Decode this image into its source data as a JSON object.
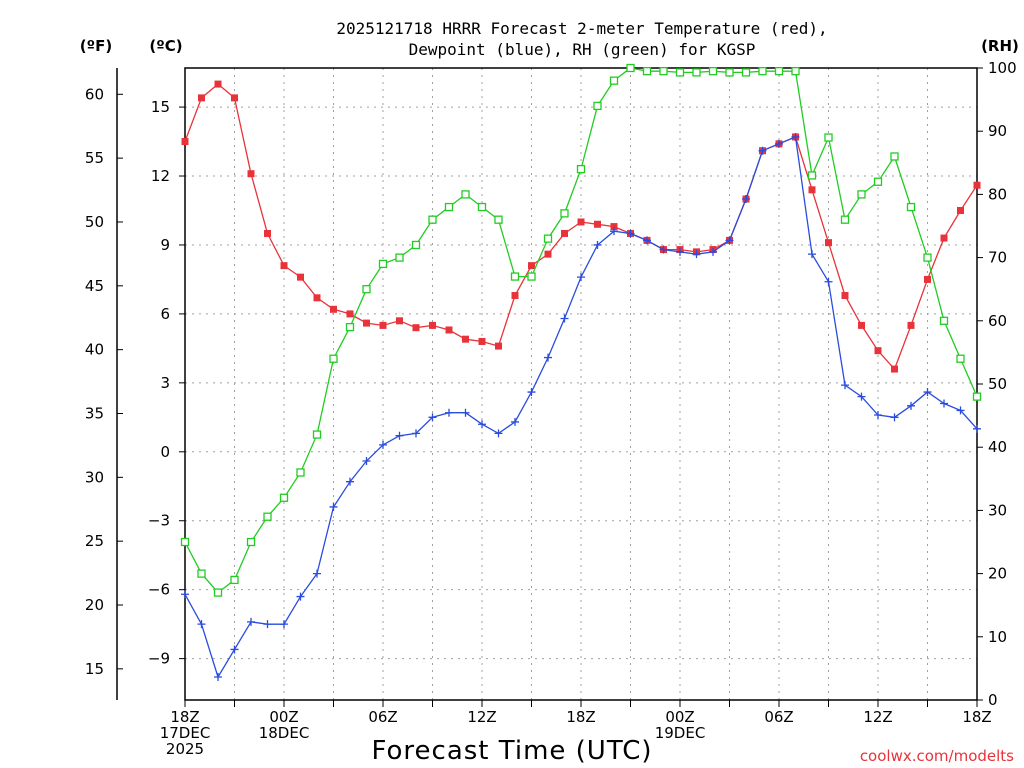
{
  "chart_data": {
    "type": "line",
    "title_line1": "2025121718 HRRR Forecast 2-meter Temperature (red),",
    "title_line2": "Dewpoint (blue), RH (green) for KGSP",
    "xlabel": "Forecast Time (UTC)",
    "credit": "coolwx.com/modelts",
    "unit_f": "(ºF)",
    "unit_c": "(ºC)",
    "unit_rh": "(RH)",
    "x_range": [
      0,
      48
    ],
    "celsius_range": [
      -10.8,
      16.7
    ],
    "rh_range": [
      0,
      100
    ],
    "celsius_ticks": [
      "-9",
      "-6",
      "-3",
      "0",
      "3",
      "6",
      "9",
      "12",
      "15"
    ],
    "fahrenheit_ticks": [
      "15",
      "20",
      "25",
      "30",
      "35",
      "40",
      "45",
      "50",
      "55",
      "60"
    ],
    "rh_ticks": [
      "0",
      "10",
      "20",
      "30",
      "40",
      "50",
      "60",
      "70",
      "80",
      "90",
      "100"
    ],
    "x_ticks": [
      {
        "hour": 0,
        "lines": [
          "18Z",
          "17DEC",
          "2025"
        ]
      },
      {
        "hour": 6,
        "lines": [
          "00Z",
          "18DEC"
        ]
      },
      {
        "hour": 12,
        "lines": [
          "06Z"
        ]
      },
      {
        "hour": 18,
        "lines": [
          "12Z"
        ]
      },
      {
        "hour": 24,
        "lines": [
          "18Z"
        ]
      },
      {
        "hour": 30,
        "lines": [
          "00Z",
          "19DEC"
        ]
      },
      {
        "hour": 36,
        "lines": [
          "06Z"
        ]
      },
      {
        "hour": 42,
        "lines": [
          "12Z"
        ]
      },
      {
        "hour": 48,
        "lines": [
          "18Z"
        ]
      }
    ],
    "series": [
      {
        "name": "Temperature (°C)",
        "color": "#e8333a",
        "marker": "filled-square",
        "axis": "celsius",
        "values": [
          13.5,
          15.4,
          16.0,
          15.4,
          12.1,
          9.5,
          8.1,
          7.6,
          6.7,
          6.2,
          6.0,
          5.6,
          5.5,
          5.7,
          5.4,
          5.5,
          5.3,
          4.9,
          4.8,
          4.6,
          6.8,
          8.1,
          8.6,
          9.5,
          10.0,
          9.9,
          9.8,
          9.5,
          9.2,
          8.8,
          8.8,
          8.7,
          8.8,
          9.2,
          11.0,
          13.1,
          13.4,
          13.7,
          11.4,
          9.1,
          6.8,
          5.5,
          4.4,
          3.6,
          5.5,
          7.5,
          9.3,
          10.5,
          11.6
        ]
      },
      {
        "name": "Dewpoint (°C)",
        "color": "#2a4be0",
        "marker": "plus",
        "axis": "celsius",
        "values": [
          -6.2,
          -7.5,
          -9.8,
          -8.6,
          -7.4,
          -7.5,
          -7.5,
          -6.3,
          -5.3,
          -2.4,
          -1.3,
          -0.4,
          0.3,
          0.7,
          0.8,
          1.5,
          1.7,
          1.7,
          1.2,
          0.8,
          1.3,
          2.6,
          4.1,
          5.8,
          7.6,
          9.0,
          9.6,
          9.5,
          9.2,
          8.8,
          8.7,
          8.6,
          8.7,
          9.2,
          11.0,
          13.1,
          13.4,
          13.7,
          8.6,
          7.4,
          2.9,
          2.4,
          1.6,
          1.5,
          2.0,
          2.6,
          2.1,
          1.8,
          1.0
        ]
      },
      {
        "name": "Relative Humidity (%)",
        "color": "#22cc22",
        "marker": "open-square",
        "axis": "rh",
        "values": [
          25,
          20,
          17,
          19,
          25,
          29,
          32,
          36,
          42,
          54,
          59,
          65,
          69,
          70,
          72,
          76,
          78,
          80,
          78,
          76,
          67,
          67,
          73,
          77,
          84,
          94,
          98,
          100,
          99.5,
          99.5,
          99.3,
          99.3,
          99.5,
          99.3,
          99.3,
          99.5,
          99.5,
          99.5,
          83,
          89,
          76,
          80,
          82,
          86,
          78,
          70,
          60,
          54,
          48
        ]
      }
    ]
  }
}
